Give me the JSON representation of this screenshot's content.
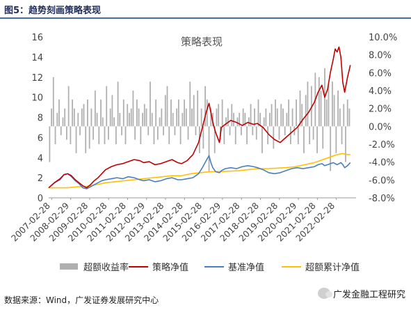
{
  "figure": {
    "title": "图5：趋势刻画策略表现",
    "source": "数据来源：Wind，广发证券发展研究中心",
    "watermark": "广发金融工程研究"
  },
  "chart_data": {
    "type": "line",
    "title": "策略表现",
    "xlabel": "",
    "ylabel": "",
    "ylim": [
      0,
      16
    ],
    "y2lim": [
      -0.08,
      0.1
    ],
    "yticks": [
      "0",
      "2",
      "4",
      "6",
      "8",
      "10",
      "12",
      "14",
      "16"
    ],
    "y2ticks": [
      "-8.0%",
      "-6.0%",
      "-4.0%",
      "-2.0%",
      "0.0%",
      "2.0%",
      "4.0%",
      "6.0%",
      "8.0%",
      "10.0%"
    ],
    "xrange": [
      2007.0,
      2023.2
    ],
    "xticks": [
      "2007-02-28",
      "2008-02-29",
      "2009-02-28",
      "2010-02-28",
      "2011-02-28",
      "2012-02-29",
      "2013-02-28",
      "2014-02-28",
      "2015-02-28",
      "2016-02-29",
      "2017-02-28",
      "2018-02-28",
      "2019-02-28",
      "2020-02-29",
      "2021-02-28",
      "2022-02-28"
    ],
    "grid": false,
    "legend_position": "bottom",
    "colors": {
      "excess": "#b0b0b0",
      "strategy": "#c00000",
      "benchmark": "#4a7ec2",
      "cum_excess": "#ffc000"
    },
    "series": [
      {
        "name": "策略净值",
        "axis": "left",
        "color": "#c00000",
        "x": [
          2007.0,
          2007.3,
          2007.6,
          2007.8,
          2008.0,
          2008.2,
          2008.4,
          2008.6,
          2008.8,
          2009.0,
          2009.2,
          2009.4,
          2009.6,
          2009.8,
          2010.0,
          2010.3,
          2010.6,
          2010.9,
          2011.2,
          2011.5,
          2011.8,
          2012.0,
          2012.3,
          2012.6,
          2012.9,
          2013.2,
          2013.5,
          2013.8,
          2014.0,
          2014.3,
          2014.6,
          2014.9,
          2015.1,
          2015.3,
          2015.45,
          2015.55,
          2015.65,
          2015.8,
          2016.0,
          2016.1,
          2016.3,
          2016.6,
          2016.9,
          2017.2,
          2017.5,
          2017.8,
          2018.0,
          2018.3,
          2018.6,
          2018.9,
          2019.2,
          2019.5,
          2019.8,
          2020.1,
          2020.4,
          2020.7,
          2021.0,
          2021.2,
          2021.4,
          2021.55,
          2021.7,
          2021.85,
          2022.0,
          2022.1,
          2022.2,
          2022.3,
          2022.4,
          2022.5,
          2022.6,
          2022.75,
          2022.9
        ],
        "values": [
          1.0,
          1.5,
          1.9,
          2.3,
          2.4,
          2.2,
          1.8,
          1.5,
          1.2,
          1.0,
          1.3,
          1.7,
          2.0,
          2.4,
          2.8,
          3.1,
          3.3,
          3.4,
          3.6,
          3.8,
          3.7,
          3.5,
          3.6,
          3.3,
          3.4,
          3.6,
          3.8,
          3.5,
          3.4,
          3.7,
          4.3,
          5.5,
          7.0,
          8.5,
          9.4,
          8.5,
          7.5,
          6.5,
          5.5,
          7.0,
          7.3,
          7.7,
          7.5,
          7.2,
          7.5,
          7.3,
          7.4,
          7.0,
          6.3,
          5.8,
          5.5,
          6.0,
          6.5,
          7.0,
          7.8,
          8.5,
          9.5,
          10.5,
          11.2,
          10.0,
          10.8,
          12.5,
          13.8,
          14.8,
          14.5,
          15.0,
          14.0,
          11.5,
          10.5,
          12.0,
          13.2
        ]
      },
      {
        "name": "基准净值",
        "axis": "left",
        "color": "#4a7ec2",
        "x": [
          2007.0,
          2007.3,
          2007.6,
          2007.8,
          2008.0,
          2008.2,
          2008.4,
          2008.6,
          2008.8,
          2009.0,
          2009.2,
          2009.4,
          2009.6,
          2009.8,
          2010.0,
          2010.3,
          2010.6,
          2010.9,
          2011.2,
          2011.5,
          2011.8,
          2012.0,
          2012.3,
          2012.6,
          2012.9,
          2013.2,
          2013.5,
          2013.8,
          2014.0,
          2014.3,
          2014.6,
          2014.9,
          2015.1,
          2015.3,
          2015.45,
          2015.55,
          2015.65,
          2015.8,
          2016.0,
          2016.1,
          2016.3,
          2016.6,
          2016.9,
          2017.2,
          2017.5,
          2017.8,
          2018.0,
          2018.3,
          2018.6,
          2018.9,
          2019.2,
          2019.5,
          2019.8,
          2020.1,
          2020.4,
          2020.7,
          2021.0,
          2021.2,
          2021.4,
          2021.55,
          2021.7,
          2021.85,
          2022.0,
          2022.1,
          2022.2,
          2022.3,
          2022.4,
          2022.5,
          2022.6,
          2022.75,
          2022.9
        ],
        "values": [
          1.0,
          1.5,
          1.8,
          2.3,
          2.4,
          2.1,
          1.7,
          1.4,
          1.0,
          0.9,
          1.1,
          1.3,
          1.5,
          1.7,
          1.8,
          1.9,
          2.0,
          1.9,
          2.1,
          2.0,
          1.8,
          1.7,
          1.8,
          1.6,
          1.7,
          1.9,
          2.0,
          1.8,
          1.8,
          1.9,
          2.0,
          2.4,
          3.0,
          3.7,
          4.2,
          3.5,
          3.0,
          2.6,
          2.5,
          2.7,
          2.9,
          3.0,
          2.9,
          3.1,
          3.2,
          3.1,
          3.0,
          2.8,
          2.5,
          2.4,
          2.5,
          2.7,
          2.9,
          3.0,
          2.9,
          3.0,
          3.1,
          3.3,
          3.4,
          3.2,
          3.3,
          3.4,
          3.5,
          3.4,
          3.3,
          3.4,
          3.5,
          3.3,
          3.0,
          3.2,
          3.5
        ]
      },
      {
        "name": "超额累计净值",
        "axis": "left",
        "color": "#ffc000",
        "x": [
          2007.0,
          2007.5,
          2008.0,
          2008.5,
          2009.0,
          2009.5,
          2010.0,
          2010.5,
          2011.0,
          2011.5,
          2012.0,
          2012.5,
          2013.0,
          2013.5,
          2014.0,
          2014.5,
          2015.0,
          2015.5,
          2016.0,
          2016.5,
          2017.0,
          2017.5,
          2018.0,
          2018.5,
          2019.0,
          2019.5,
          2020.0,
          2020.5,
          2021.0,
          2021.3,
          2021.6,
          2021.9,
          2022.2,
          2022.5,
          2022.75,
          2022.9
        ],
        "values": [
          1.0,
          1.0,
          1.0,
          1.1,
          1.15,
          1.3,
          1.5,
          1.6,
          1.7,
          1.8,
          1.9,
          2.0,
          2.1,
          2.2,
          2.2,
          2.4,
          2.5,
          2.6,
          2.6,
          2.65,
          2.7,
          2.8,
          2.9,
          2.9,
          2.95,
          3.0,
          3.1,
          3.3,
          3.5,
          3.7,
          3.9,
          4.1,
          4.3,
          4.4,
          4.3,
          4.3
        ]
      }
    ],
    "bars": {
      "name": "超额收益率",
      "axis": "right",
      "color": "#b0b0b0",
      "x": [
        2007.05,
        2007.15,
        2007.25,
        2007.35,
        2007.45,
        2007.55,
        2007.65,
        2007.75,
        2007.85,
        2007.95,
        2008.05,
        2008.15,
        2008.25,
        2008.35,
        2008.45,
        2008.55,
        2008.65,
        2008.75,
        2008.85,
        2008.95,
        2009.05,
        2009.15,
        2009.25,
        2009.35,
        2009.45,
        2009.55,
        2009.65,
        2009.75,
        2009.85,
        2009.95,
        2010.05,
        2010.15,
        2010.25,
        2010.35,
        2010.45,
        2010.55,
        2010.65,
        2010.75,
        2010.85,
        2010.95,
        2011.05,
        2011.15,
        2011.25,
        2011.35,
        2011.45,
        2011.55,
        2011.65,
        2011.75,
        2011.85,
        2011.95,
        2012.05,
        2012.15,
        2012.25,
        2012.35,
        2012.45,
        2012.55,
        2012.65,
        2012.75,
        2012.85,
        2012.95,
        2013.05,
        2013.15,
        2013.25,
        2013.35,
        2013.45,
        2013.55,
        2013.65,
        2013.75,
        2013.85,
        2013.95,
        2014.05,
        2014.15,
        2014.25,
        2014.35,
        2014.45,
        2014.55,
        2014.65,
        2014.75,
        2014.85,
        2014.95,
        2015.05,
        2015.15,
        2015.25,
        2015.35,
        2015.45,
        2015.55,
        2015.65,
        2015.75,
        2015.85,
        2015.95,
        2016.05,
        2016.15,
        2016.25,
        2016.35,
        2016.45,
        2016.55,
        2016.65,
        2016.75,
        2016.85,
        2016.95,
        2017.05,
        2017.15,
        2017.25,
        2017.35,
        2017.45,
        2017.55,
        2017.65,
        2017.75,
        2017.85,
        2017.95,
        2018.05,
        2018.15,
        2018.25,
        2018.35,
        2018.45,
        2018.55,
        2018.65,
        2018.75,
        2018.85,
        2018.95,
        2019.05,
        2019.15,
        2019.25,
        2019.35,
        2019.45,
        2019.55,
        2019.65,
        2019.75,
        2019.85,
        2019.95,
        2020.05,
        2020.15,
        2020.25,
        2020.35,
        2020.45,
        2020.55,
        2020.65,
        2020.75,
        2020.85,
        2020.95,
        2021.05,
        2021.15,
        2021.25,
        2021.35,
        2021.45,
        2021.55,
        2021.65,
        2021.75,
        2021.85,
        2021.95,
        2022.05,
        2022.15,
        2022.25,
        2022.35,
        2022.45,
        2022.55,
        2022.65,
        2022.75,
        2022.85
      ],
      "values": [
        -0.04,
        0.02,
        0.055,
        -0.02,
        0.015,
        0.03,
        -0.01,
        0.01,
        0.02,
        -0.015,
        0.045,
        -0.02,
        0.03,
        0.02,
        -0.03,
        0.015,
        -0.01,
        0.02,
        0.025,
        -0.03,
        0.03,
        -0.025,
        0.02,
        -0.015,
        0.04,
        0.015,
        -0.02,
        0.03,
        0.01,
        -0.02,
        0.045,
        -0.015,
        0.02,
        0.035,
        0.01,
        -0.02,
        0.05,
        0.015,
        -0.01,
        0.03,
        -0.02,
        0.025,
        0.015,
        0.02,
        0.04,
        -0.015,
        0.03,
        0.02,
        -0.02,
        0.015,
        0.025,
        0.02,
        -0.01,
        0.05,
        0.015,
        -0.02,
        0.03,
        -0.015,
        0.01,
        0.02,
        -0.01,
        0.035,
        0.045,
        -0.02,
        0.03,
        0.015,
        -0.01,
        0.02,
        0.03,
        -0.02,
        0.015,
        0.03,
        0.02,
        -0.015,
        0.05,
        0.02,
        0.035,
        -0.01,
        0.04,
        -0.03,
        0.02,
        -0.025,
        0.045,
        0.03,
        -0.05,
        0.02,
        0.015,
        -0.03,
        0.02,
        0.025,
        -0.015,
        0.03,
        -0.02,
        0.01,
        0.02,
        -0.01,
        0.025,
        0.015,
        -0.02,
        0.01,
        0.015,
        -0.01,
        0.02,
        0.015,
        -0.02,
        0.01,
        0.025,
        -0.01,
        0.02,
        -0.015,
        0.03,
        0.015,
        -0.03,
        0.01,
        0.02,
        -0.02,
        0.015,
        0.025,
        -0.025,
        0.03,
        0.02,
        -0.015,
        0.025,
        0.02,
        -0.01,
        0.015,
        0.03,
        -0.02,
        0.02,
        -0.01,
        0.03,
        -0.02,
        0.04,
        0.025,
        -0.03,
        0.035,
        0.05,
        -0.02,
        0.045,
        -0.015,
        0.06,
        -0.03,
        0.055,
        0.04,
        -0.025,
        0.065,
        0.03,
        0.045,
        -0.05,
        0.05,
        0.035,
        -0.03,
        0.04,
        0.02,
        -0.02,
        0.025,
        -0.04,
        0.03,
        0.02
      ]
    }
  }
}
